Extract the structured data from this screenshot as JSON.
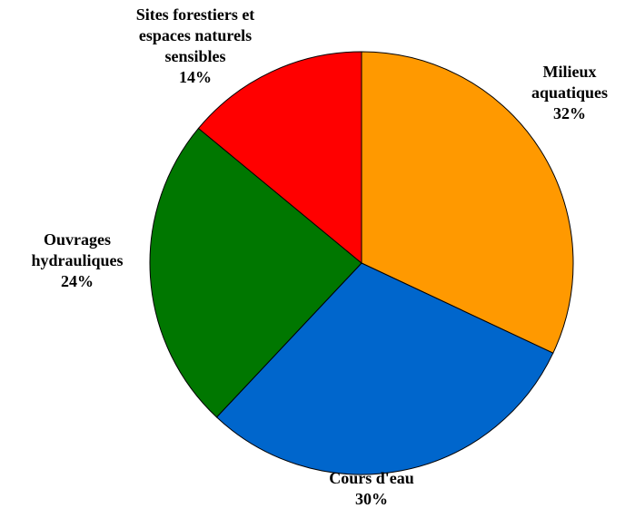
{
  "chart_data": {
    "type": "pie",
    "slices": [
      {
        "label": [
          "Milieux",
          "aquatiques"
        ],
        "value_label": "32%",
        "value": 32,
        "color": "#ff9900"
      },
      {
        "label": [
          "Cours d'eau"
        ],
        "value_label": "30%",
        "value": 30,
        "color": "#0066cc"
      },
      {
        "label": [
          "Ouvrages",
          "hydrauliques"
        ],
        "value_label": "24%",
        "value": 24,
        "color": "#007700"
      },
      {
        "label": [
          "Sites forestiers et",
          "espaces naturels",
          "sensibles"
        ],
        "value_label": "14%",
        "value": 14,
        "color": "#ff0000"
      }
    ],
    "start_angle": "12 o'clock",
    "direction": "clockwise"
  }
}
